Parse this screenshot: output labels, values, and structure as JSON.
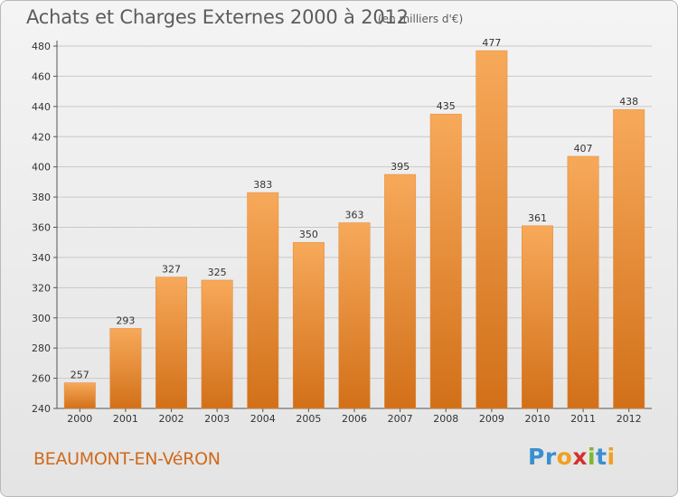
{
  "title": "Achats et Charges Externes 2000 à 2012",
  "subtitle": "(en milliers d'€)",
  "commune": "BEAUMONT-EN-VéRON",
  "brand": {
    "letters": [
      "P",
      "r",
      "o",
      "x",
      "i",
      "t",
      "i"
    ],
    "colors": [
      "#3a8fd1",
      "#3a8fd1",
      "#f0a020",
      "#d2322d",
      "#7bb82a",
      "#3a8fd1",
      "#f0a020"
    ]
  },
  "colors": {
    "bar_top": "#f7a95a",
    "bar_bottom": "#d27019",
    "title": "#5c5c5c",
    "commune": "#d06a1c",
    "grid": "#c8c8c8"
  },
  "chart_data": {
    "type": "bar",
    "categories": [
      "2000",
      "2001",
      "2002",
      "2003",
      "2004",
      "2005",
      "2006",
      "2007",
      "2008",
      "2009",
      "2010",
      "2011",
      "2012"
    ],
    "values": [
      257,
      293,
      327,
      325,
      383,
      350,
      363,
      395,
      435,
      477,
      361,
      407,
      438
    ],
    "title": "Achats et Charges Externes 2000 à 2012",
    "subtitle": "(en milliers d'€)",
    "xlabel": "",
    "ylabel": "",
    "ylim": [
      240,
      480
    ],
    "yticks": [
      240,
      260,
      280,
      300,
      320,
      340,
      360,
      380,
      400,
      420,
      440,
      460,
      480
    ],
    "grid": true,
    "data_labels": true
  }
}
